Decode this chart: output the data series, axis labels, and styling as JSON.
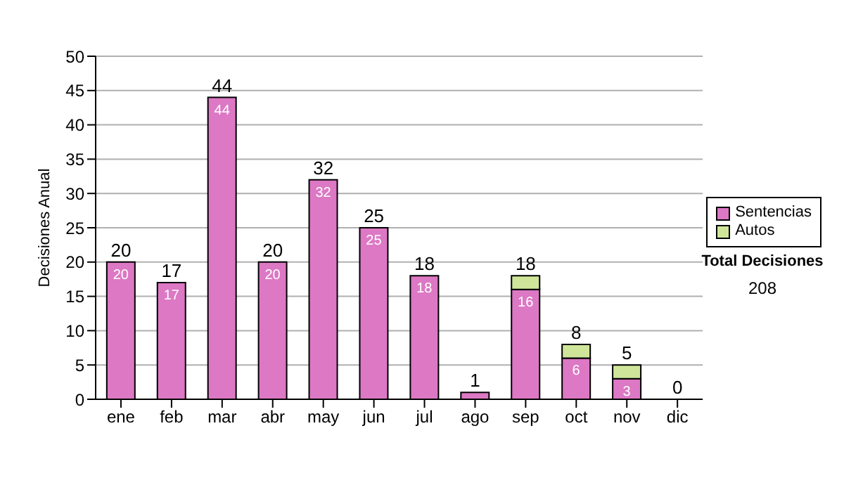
{
  "chart_data": {
    "type": "bar",
    "stacked": true,
    "ylabel": "Decisiones Anual",
    "categories": [
      "ene",
      "feb",
      "mar",
      "abr",
      "may",
      "jun",
      "jul",
      "ago",
      "sep",
      "oct",
      "nov",
      "dic"
    ],
    "series": [
      {
        "name": "Sentencias",
        "color": "#dc78c4",
        "values": [
          20,
          17,
          44,
          20,
          32,
          25,
          18,
          1,
          16,
          6,
          3,
          0
        ],
        "value_labels": [
          "20",
          "17",
          "44",
          "20",
          "32",
          "25",
          "18",
          null,
          "16",
          "6",
          "3",
          null
        ]
      },
      {
        "name": "Autos",
        "color": "#cfe69a",
        "values": [
          0,
          0,
          0,
          0,
          0,
          0,
          0,
          0,
          2,
          2,
          2,
          0
        ]
      }
    ],
    "totals": [
      "20",
      "17",
      "44",
      "20",
      "32",
      "25",
      "18",
      "1",
      "18",
      "8",
      "5",
      "0"
    ],
    "ylim": [
      0,
      50
    ],
    "yticks": [
      0,
      5,
      10,
      15,
      20,
      25,
      30,
      35,
      40,
      45,
      50
    ],
    "grid": "y",
    "legend": "right",
    "annotations": [
      "Total Decisiones",
      "208"
    ]
  }
}
